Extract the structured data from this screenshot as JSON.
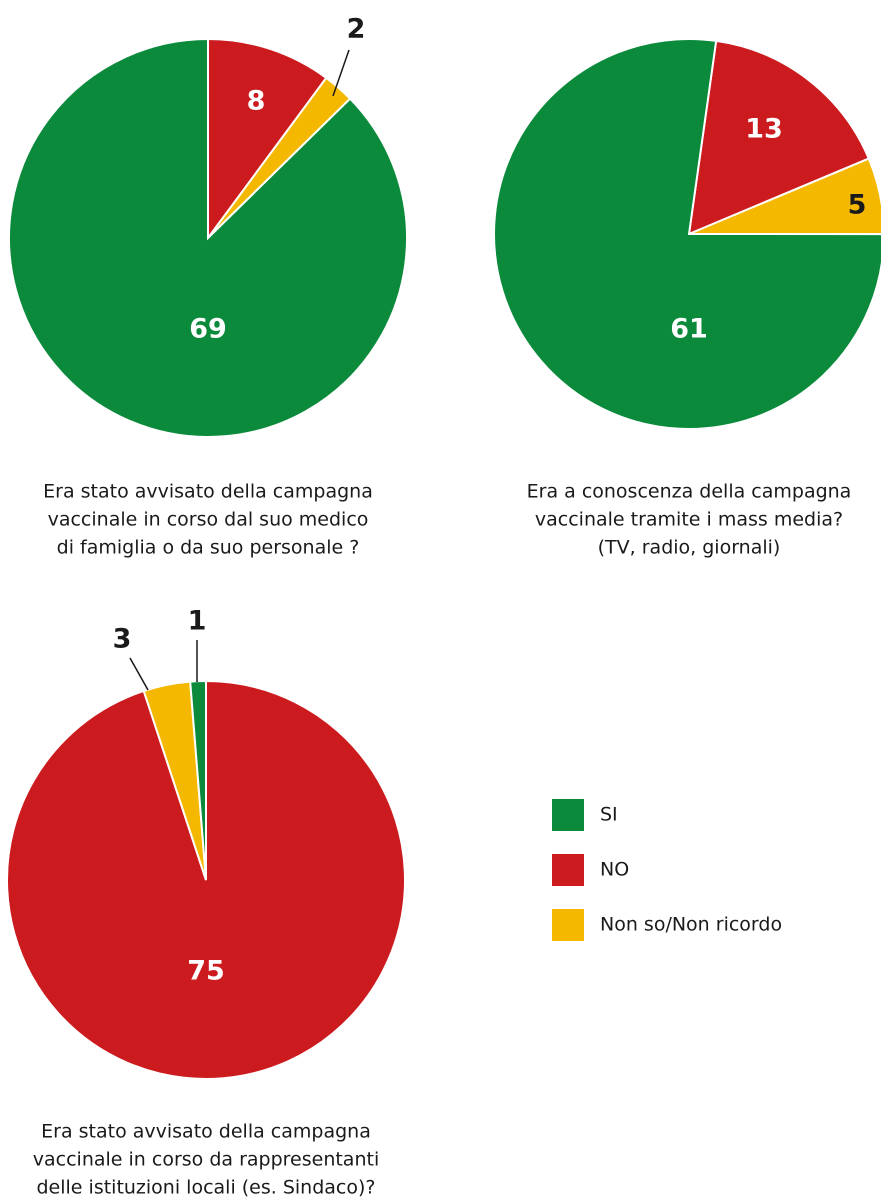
{
  "chart_data": [
    {
      "type": "pie",
      "title": [
        "Era stato avvisato della campagna",
        "vaccinale in corso dal suo medico",
        "di famiglia o da suo personale ?"
      ],
      "categories": [
        "SI",
        "NO",
        "Non so/Non ricordo"
      ],
      "values": [
        69,
        8,
        2
      ],
      "colors": [
        "#0b8a3b",
        "#cc1b1f",
        "#f5b800"
      ]
    },
    {
      "type": "pie",
      "title": [
        "Era a conoscenza della campagna",
        "vaccinale tramite i mass media?",
        "(TV, radio, giornali)"
      ],
      "categories": [
        "SI",
        "NO",
        "Non so/Non ricordo"
      ],
      "values": [
        61,
        13,
        5
      ],
      "colors": [
        "#0b8a3b",
        "#cc1b1f",
        "#f5b800"
      ]
    },
    {
      "type": "pie",
      "title": [
        "Era stato avvisato della campagna",
        "vaccinale in corso da rappresentanti",
        "delle istituzioni locali (es. Sindaco)?"
      ],
      "categories": [
        "SI",
        "NO",
        "Non so/Non ricordo"
      ],
      "values": [
        1,
        75,
        3
      ],
      "colors": [
        "#0b8a3b",
        "#cc1b1f",
        "#f5b800"
      ]
    }
  ]
}
